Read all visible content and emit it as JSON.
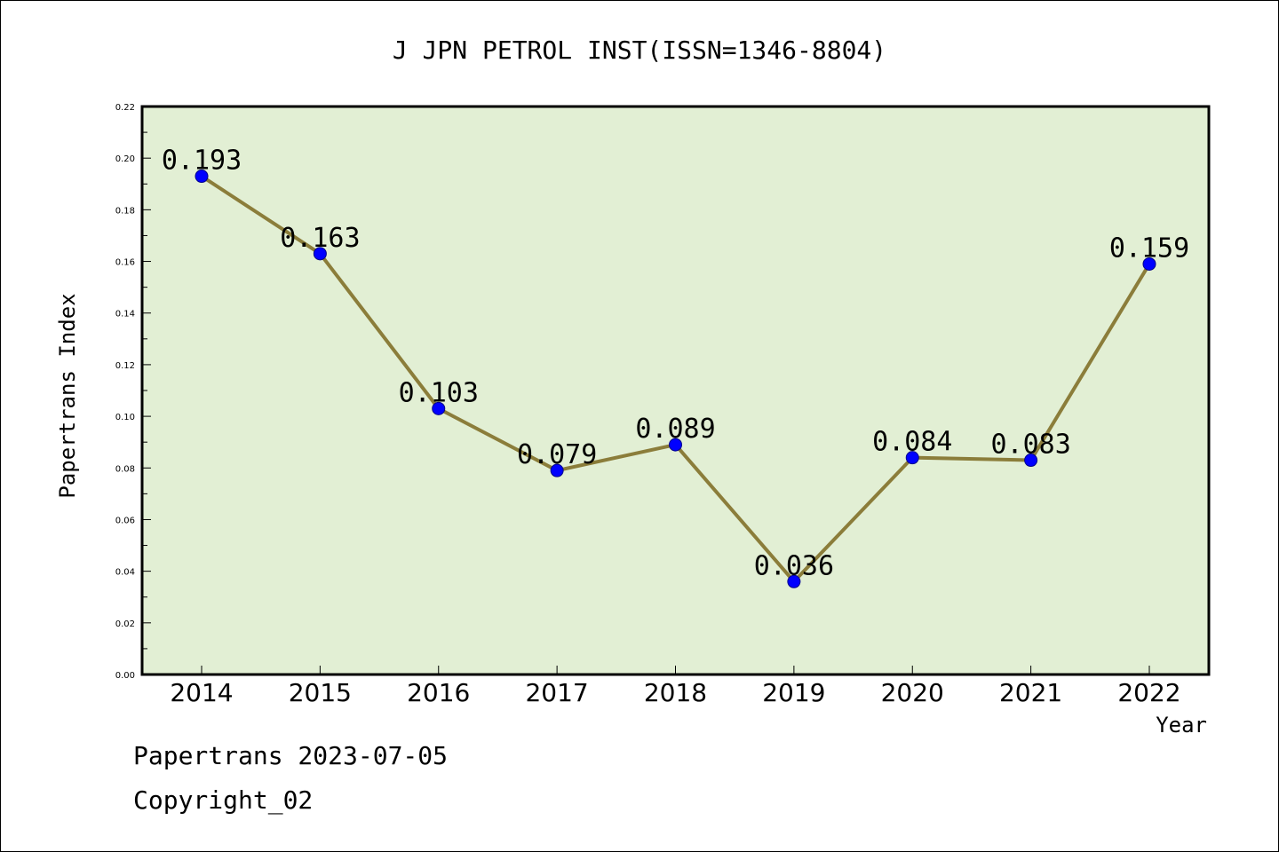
{
  "chart_data": {
    "type": "line",
    "title": "J JPN PETROL INST(ISSN=1346-8804)",
    "xlabel": "Year",
    "ylabel": "Papertrans Index",
    "categories": [
      "2014",
      "2015",
      "2016",
      "2017",
      "2018",
      "2019",
      "2020",
      "2021",
      "2022"
    ],
    "values": [
      0.193,
      0.163,
      0.103,
      0.079,
      0.089,
      0.036,
      0.084,
      0.083,
      0.159
    ],
    "data_labels": [
      "0.193",
      "0.163",
      "0.103",
      "0.079",
      "0.089",
      "0.036",
      "0.084",
      "0.083",
      "0.159"
    ],
    "ylim": [
      0.0,
      0.22
    ],
    "yticks": [
      "0.00",
      "0.02",
      "0.04",
      "0.06",
      "0.08",
      "0.10",
      "0.12",
      "0.14",
      "0.16",
      "0.18",
      "0.20",
      "0.22"
    ],
    "grid": false,
    "legend": "none",
    "colors": {
      "plot_background": "#e2efd4",
      "line": "#8b7d3a",
      "marker": "#0000ff"
    }
  },
  "footer": {
    "source": "Papertrans 2023-07-05",
    "copyright": "Copyright_02"
  }
}
